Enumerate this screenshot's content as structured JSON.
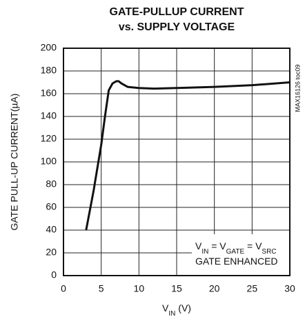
{
  "chart_data": {
    "type": "line",
    "title": [
      "GATE-PULLUP CURRENT",
      "vs. SUPPLY VOLTAGE"
    ],
    "xlabel": [
      "V",
      "IN",
      " (V)"
    ],
    "ylabel": "GATE PULL-UP CURRENT(µA)",
    "annotation": [
      [
        "V",
        "IN",
        " = V",
        "GATE",
        " = V",
        "SRC"
      ],
      [
        "GATE ENHANCED"
      ]
    ],
    "side_note": "MAX16126 toc09",
    "xlim": [
      0,
      30
    ],
    "xticks": [
      0,
      5,
      10,
      15,
      20,
      25,
      30
    ],
    "ylim": [
      0,
      200
    ],
    "yticks": [
      0,
      20,
      40,
      60,
      80,
      100,
      120,
      140,
      160,
      180,
      200
    ],
    "grid": true,
    "series": [
      {
        "color": "#111111",
        "x": [
          3,
          4,
          5,
          5.5,
          6,
          6.5,
          7,
          7.3,
          7.7,
          8.5,
          10,
          12,
          15,
          20,
          25,
          30
        ],
        "values": [
          40,
          75,
          115,
          140,
          163,
          169,
          171,
          171,
          169,
          166,
          165,
          164.5,
          165,
          166,
          167.5,
          170
        ]
      }
    ]
  }
}
